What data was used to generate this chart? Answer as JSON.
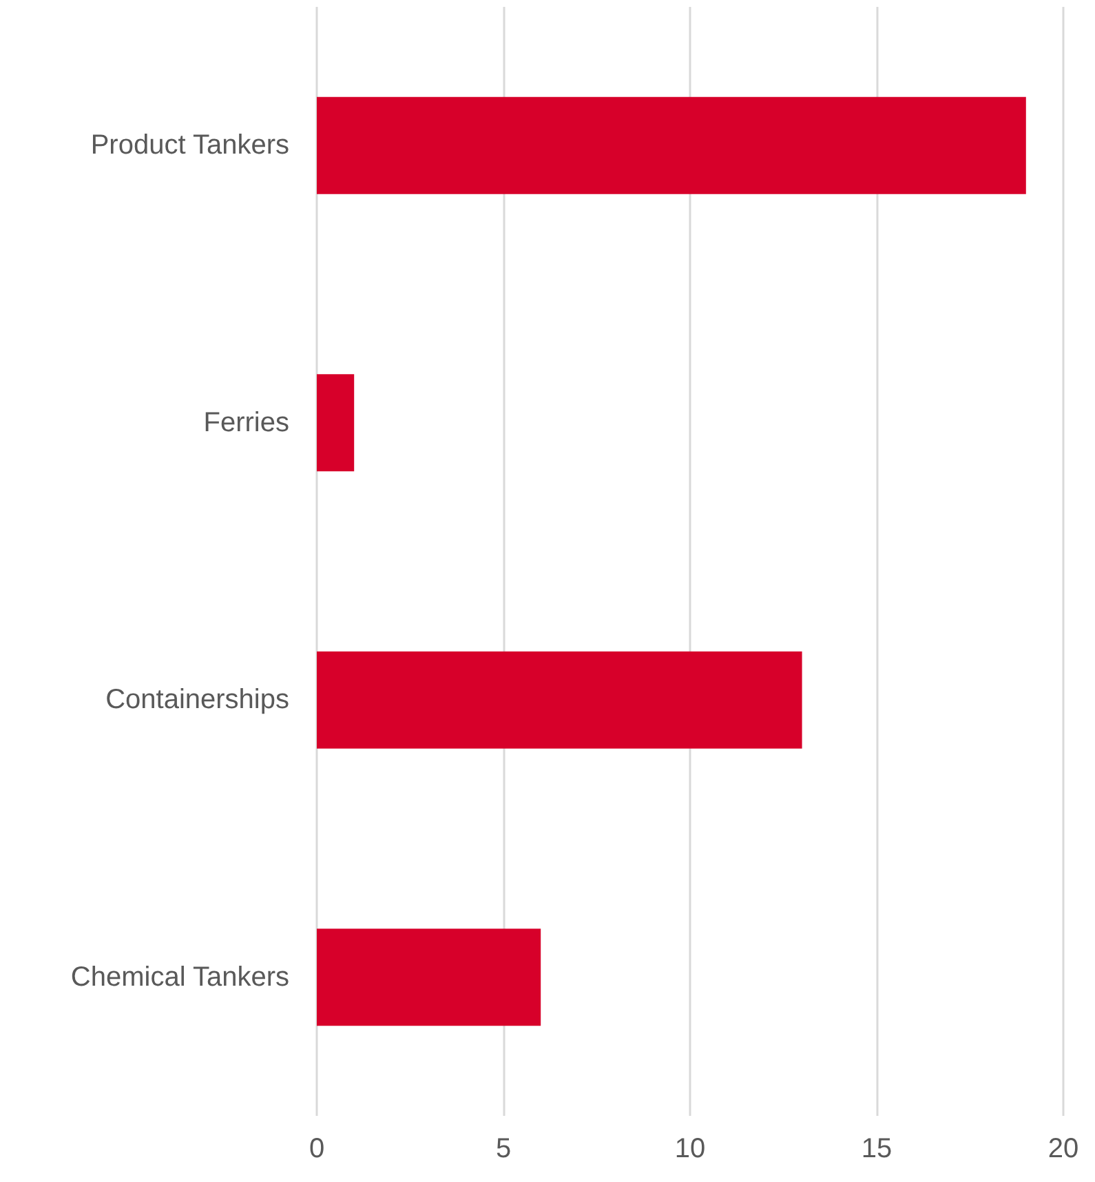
{
  "chart_data": {
    "type": "bar",
    "orientation": "horizontal",
    "categories": [
      "Product Tankers",
      "Ferries",
      "Containerships",
      "Chemical Tankers"
    ],
    "values": [
      19,
      1,
      13,
      6
    ],
    "color": "#d7002a",
    "xlim": [
      0,
      20
    ],
    "xticks": [
      0,
      5,
      10,
      15,
      20
    ],
    "grid": "x"
  }
}
